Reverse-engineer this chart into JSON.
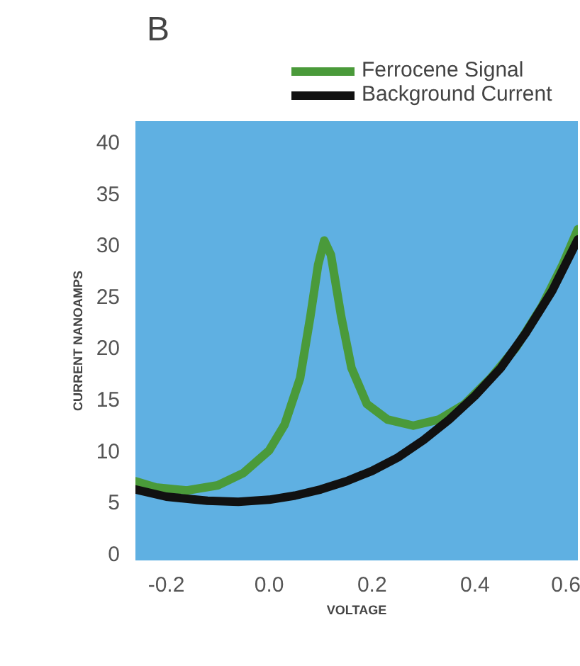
{
  "chart_data": {
    "type": "line",
    "title": "B",
    "xlabel": "VOLTAGE",
    "ylabel": "CURRENT NANOAMPS",
    "xlim": [
      -0.26,
      0.6
    ],
    "ylim": [
      -0.7,
      42
    ],
    "xticks": [
      {
        "value": -0.2,
        "label": "-0.2"
      },
      {
        "value": 0,
        "label": "0.0"
      },
      {
        "value": 0.2,
        "label": "0.2"
      },
      {
        "value": 0.4,
        "label": "0.4"
      },
      {
        "value": 0.6,
        "label": "0.6"
      }
    ],
    "yticks": [
      0,
      5,
      10,
      15,
      20,
      25,
      30,
      35,
      40
    ],
    "grid": false,
    "legend": "top",
    "line_style": "solid",
    "marker": "none",
    "series": [
      {
        "name": "Ferrocene Signal",
        "color": "#4a9a3a",
        "x": [
          -0.26,
          -0.22,
          -0.16,
          -0.1,
          -0.05,
          0.0,
          0.03,
          0.06,
          0.08,
          0.095,
          0.107,
          0.12,
          0.14,
          0.16,
          0.19,
          0.23,
          0.28,
          0.33,
          0.38,
          0.43,
          0.48,
          0.53,
          0.57,
          0.6
        ],
        "values": [
          7.0,
          6.4,
          6.1,
          6.6,
          7.8,
          10,
          12.5,
          17,
          23,
          28,
          30.4,
          29,
          23,
          18,
          14.5,
          13,
          12.4,
          13,
          14.5,
          17,
          20,
          24,
          28,
          31.5
        ]
      },
      {
        "name": "Background Current",
        "color": "#111111",
        "x": [
          -0.26,
          -0.2,
          -0.12,
          -0.06,
          0.0,
          0.05,
          0.1,
          0.15,
          0.2,
          0.25,
          0.3,
          0.35,
          0.4,
          0.45,
          0.5,
          0.55,
          0.6
        ],
        "values": [
          6.2,
          5.5,
          5.1,
          5.0,
          5.2,
          5.6,
          6.2,
          7.0,
          8.0,
          9.3,
          11,
          13,
          15.3,
          18,
          21.5,
          25.5,
          30.5
        ]
      }
    ]
  }
}
